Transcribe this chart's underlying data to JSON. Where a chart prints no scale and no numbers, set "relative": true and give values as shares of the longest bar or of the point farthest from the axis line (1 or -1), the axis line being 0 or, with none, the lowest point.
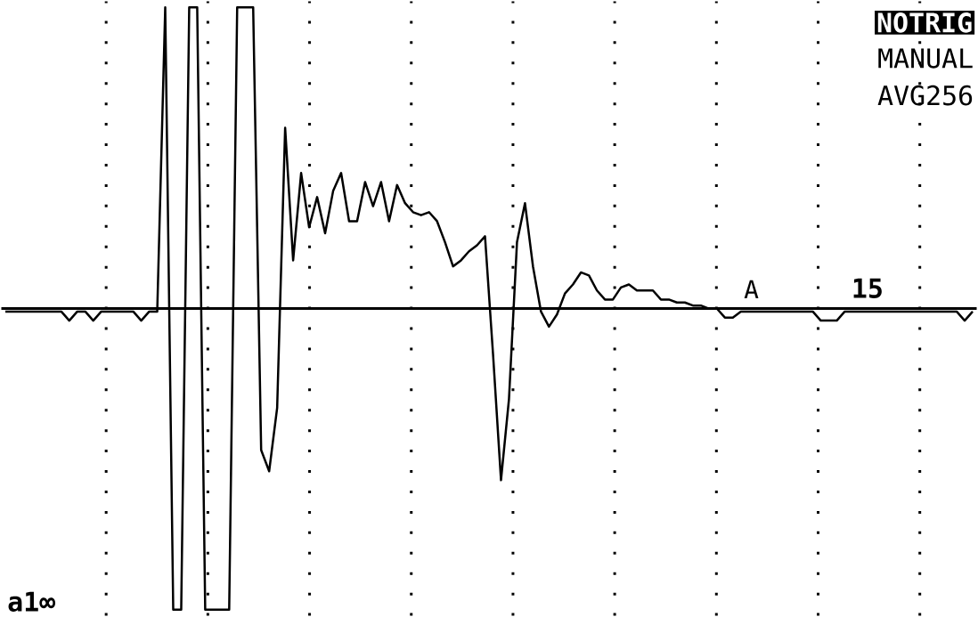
{
  "chart_data": {
    "type": "line",
    "relative": true,
    "grid": true,
    "line_style": "solid",
    "categories": [
      null,
      null,
      null,
      null,
      null,
      null,
      null,
      null,
      null,
      null,
      null,
      null,
      null,
      null,
      null,
      null,
      null,
      null,
      null,
      null,
      null,
      null,
      null,
      null,
      null,
      null,
      null,
      null,
      null,
      null,
      null,
      null,
      null,
      null,
      null,
      null,
      null,
      null,
      null,
      null,
      null,
      null,
      null,
      null,
      null,
      null,
      null,
      null,
      null,
      null,
      null,
      null,
      null,
      null,
      null,
      null,
      null,
      null,
      null,
      null,
      null,
      null,
      null,
      null,
      null,
      null,
      null,
      null,
      null,
      null,
      null,
      null,
      null,
      null,
      null,
      null,
      null,
      null,
      null,
      null,
      null,
      null,
      null,
      null,
      null,
      null,
      null,
      null,
      null,
      null,
      null,
      null,
      null,
      null,
      null,
      null,
      null,
      null,
      null,
      null,
      null,
      null,
      null,
      null,
      null,
      null,
      null,
      null,
      null,
      null,
      null,
      null,
      null,
      null,
      null,
      null,
      null,
      null,
      null,
      null,
      null,
      null
    ],
    "series": [
      {
        "color": "#000000",
        "values": [
          -0.01,
          -0.01,
          -0.01,
          -0.01,
          -0.01,
          -0.01,
          -0.01,
          -0.01,
          -0.04,
          -0.01,
          -0.01,
          -0.04,
          -0.01,
          -0.01,
          -0.01,
          -0.01,
          -0.01,
          -0.04,
          -0.01,
          -0.01,
          1,
          -1,
          -1,
          1,
          1,
          -1,
          -1,
          -1,
          -1,
          1,
          1,
          1,
          -0.47,
          -0.54,
          -0.33,
          0.6,
          0.16,
          0.45,
          0.27,
          0.37,
          0.25,
          0.39,
          0.45,
          0.29,
          0.29,
          0.42,
          0.34,
          0.42,
          0.29,
          0.41,
          0.35,
          0.32,
          0.31,
          0.32,
          0.29,
          0.22,
          0.14,
          0.16,
          0.19,
          0.21,
          0.24,
          -0.15,
          -0.57,
          -0.3,
          0.22,
          0.35,
          0.14,
          -0.01,
          -0.06,
          -0.02,
          0.05,
          0.08,
          0.12,
          0.11,
          0.06,
          0.03,
          0.03,
          0.07,
          0.08,
          0.06,
          0.06,
          0.06,
          0.03,
          0.03,
          0.02,
          0.02,
          0.01,
          0.01,
          0,
          0,
          -0.03,
          -0.03,
          -0.01,
          -0.01,
          -0.01,
          -0.01,
          -0.01,
          -0.01,
          -0.01,
          -0.01,
          -0.01,
          -0.01,
          -0.04,
          -0.04,
          -0.04,
          -0.01,
          -0.01,
          -0.01,
          -0.01,
          -0.01,
          -0.01,
          -0.01,
          -0.01,
          -0.01,
          -0.01,
          -0.01,
          -0.01,
          -0.01,
          -0.01,
          -0.01,
          -0.04,
          -0.01
        ]
      }
    ],
    "annotations": [
      "NOTRIG",
      "MANUAL",
      "AVG256",
      "A",
      "15",
      "a1∞"
    ]
  }
}
